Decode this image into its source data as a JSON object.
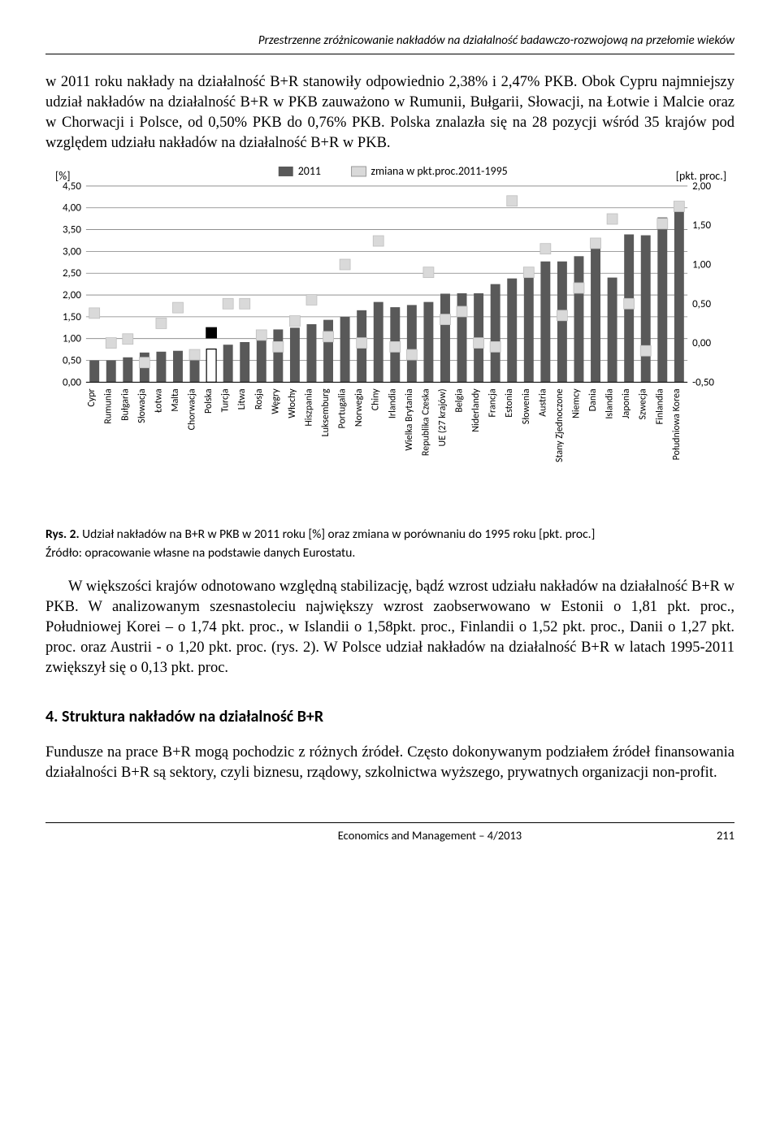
{
  "header": {
    "running": "Przestrzenne zróżnicowanie nakładów na działalność badawczo-rozwojową na przełomie wieków"
  },
  "para1": "w 2011 roku nakłady na działalność B+R stanowiły odpowiednio 2,38% i 2,47% PKB. Obok Cypru najmniejszy udział nakładów na działalność B+R w PKB zauważono w Rumunii, Bułgarii, Słowacji, na Łotwie i Malcie oraz w Chorwacji i Polsce, od 0,50% PKB do 0,76% PKB. Polska znalazła się na 28 pozycji wśród 35 krajów pod względem udziału nakładów na działalność B+R w PKB.",
  "chart": {
    "type": "bar+scatter-dual-axis",
    "legend": [
      {
        "label": "2011",
        "swatch": "bar-dark"
      },
      {
        "label": "zmiana w pkt.proc.2011-1995",
        "swatch": "square-light"
      }
    ],
    "left_axis": {
      "title": "[%]",
      "min": 0.0,
      "max": 4.5,
      "step": 0.5,
      "ticks": [
        "4,50",
        "4,00",
        "3,50",
        "3,00",
        "2,50",
        "2,00",
        "1,50",
        "1,00",
        "0,50",
        "0,00"
      ],
      "tick_fontsize": 13
    },
    "right_axis": {
      "title": "[pkt. proc.]",
      "min": -0.5,
      "max": 2.0,
      "step": 0.5,
      "ticks": [
        "2,00",
        "1,50",
        "1,00",
        "0,50",
        "0,00",
        "-0,50"
      ],
      "tick_fontsize": 13
    },
    "grid_color": "#808080",
    "bar_color": "#595959",
    "bar_hollow_color": "#ffffff",
    "bar_border": "#000000",
    "marker_fill": "#d9d9d9",
    "marker_dark_fill": "#000000",
    "marker_size": 13,
    "background": "#ffffff",
    "categories": [
      "Cypr",
      "Rumunia",
      "Bułgaria",
      "Słowacja",
      "Łotwa",
      "Malta",
      "Chorwacja",
      "Polska",
      "Turcja",
      "Litwa",
      "Rosja",
      "Węgry",
      "Włochy",
      "Hiszpania",
      "Luksemburg",
      "Portugalia",
      "Norwegia",
      "Chiny",
      "Irlandia",
      "Wielka Brytania",
      "Republika Czeska",
      "UE (27 krajów)",
      "Belgia",
      "Niderlandy",
      "Francja",
      "Estonia",
      "Słowenia",
      "Austria",
      "Stany Zjednoczone",
      "Niemcy",
      "Dania",
      "Islandia",
      "Japonia",
      "Szwecja",
      "Finlandia",
      "Południowa Korea"
    ],
    "bar_values": [
      0.5,
      0.5,
      0.57,
      0.68,
      0.7,
      0.72,
      0.75,
      0.76,
      0.86,
      0.92,
      1.1,
      1.21,
      1.25,
      1.33,
      1.43,
      1.5,
      1.65,
      1.84,
      1.72,
      1.77,
      1.84,
      2.03,
      2.04,
      2.04,
      2.25,
      2.38,
      2.47,
      2.77,
      2.77,
      2.89,
      3.09,
      2.4,
      3.39,
      3.37,
      3.78,
      4.03
    ],
    "marker_values": [
      0.38,
      0.0,
      0.05,
      -0.25,
      0.25,
      0.45,
      -0.15,
      0.13,
      0.5,
      0.5,
      0.1,
      -0.05,
      0.28,
      0.55,
      0.08,
      1.0,
      0.0,
      1.3,
      -0.05,
      -0.15,
      0.9,
      0.3,
      0.4,
      0.0,
      -0.05,
      1.81,
      0.9,
      1.2,
      0.35,
      0.7,
      1.27,
      1.58,
      0.5,
      -0.1,
      1.52,
      1.74
    ],
    "hollow_bar_index": 7,
    "dark_marker_index": 7,
    "xlabel_fontsize": 12,
    "xlabel_rotation": -90
  },
  "caption_lead": "Rys. 2.",
  "caption_text": " Udział nakładów na B+R w PKB w 2011 roku [%] oraz zmiana w porównaniu do 1995 roku [pkt. proc.]",
  "source": "Źródło: opracowanie własne na podstawie danych Eurostatu.",
  "para2": "W większości krajów odnotowano względną stabilizację, bądź wzrost udziału nakładów na działalność B+R w PKB. W analizowanym szesnastoleciu największy wzrost zaobserwowano w Estonii o 1,81 pkt. proc., Południowej Korei – o 1,74 pkt. proc., w Islandii o 1,58pkt. proc., Finlandii o 1,52 pkt. proc., Danii o 1,27 pkt. proc. oraz Austrii - o 1,20 pkt. proc. (rys. 2). W Polsce udział nakładów na działalność B+R w latach 1995-2011 zwiększył się o 0,13 pkt. proc.",
  "section": "4. Struktura nakładów na działalność B+R",
  "para3": "Fundusze na prace B+R mogą pochodzic z różnych źródeł. Często dokonywanym podziałem źródeł finansowania działalności B+R są sektory, czyli biznesu, rządowy, szkolnictwa wyższego, prywatnych organizacji non-profit.",
  "footer": {
    "journal": "Economics and Management – 4/2013",
    "page": "211"
  }
}
